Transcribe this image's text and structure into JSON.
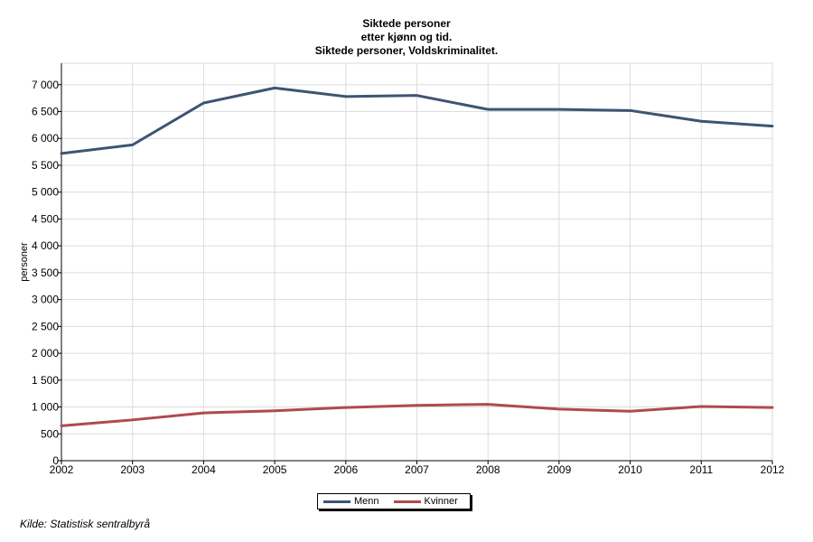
{
  "header": {
    "title_lines": [
      "Siktede personer",
      "etter kjønn og tid.",
      "Siktede personer, Voldskriminalitet."
    ]
  },
  "source": "Kilde: Statistisk sentralbyrå",
  "chart_data": {
    "type": "line",
    "title": "Siktede personer etter kjønn og tid. Siktede personer, Voldskriminalitet.",
    "xlabel": "",
    "ylabel": "personer",
    "x": [
      "2002",
      "2003",
      "2004",
      "2005",
      "2006",
      "2007",
      "2008",
      "2009",
      "2010",
      "2011",
      "2012"
    ],
    "ylim": [
      0,
      7400
    ],
    "yticks": [
      0,
      500,
      1000,
      1500,
      2000,
      2500,
      3000,
      3500,
      4000,
      4500,
      5000,
      5500,
      6000,
      6500,
      7000
    ],
    "ytick_labels": [
      "0",
      "500",
      "1 000",
      "1 500",
      "2 000",
      "2 500",
      "3 000",
      "3 500",
      "4 000",
      "4 500",
      "5 000",
      "5 500",
      "6 000",
      "6 500",
      "7 000"
    ],
    "grid": true,
    "legend_position": "bottom-center",
    "series": [
      {
        "name": "Menn",
        "color": "#3d5474",
        "values": [
          5720,
          5880,
          6660,
          6940,
          6780,
          6800,
          6540,
          6540,
          6520,
          6320,
          6230
        ]
      },
      {
        "name": "Kvinner",
        "color": "#b04a4f",
        "values": [
          650,
          760,
          890,
          930,
          990,
          1030,
          1050,
          960,
          920,
          1010,
          990
        ]
      }
    ]
  }
}
